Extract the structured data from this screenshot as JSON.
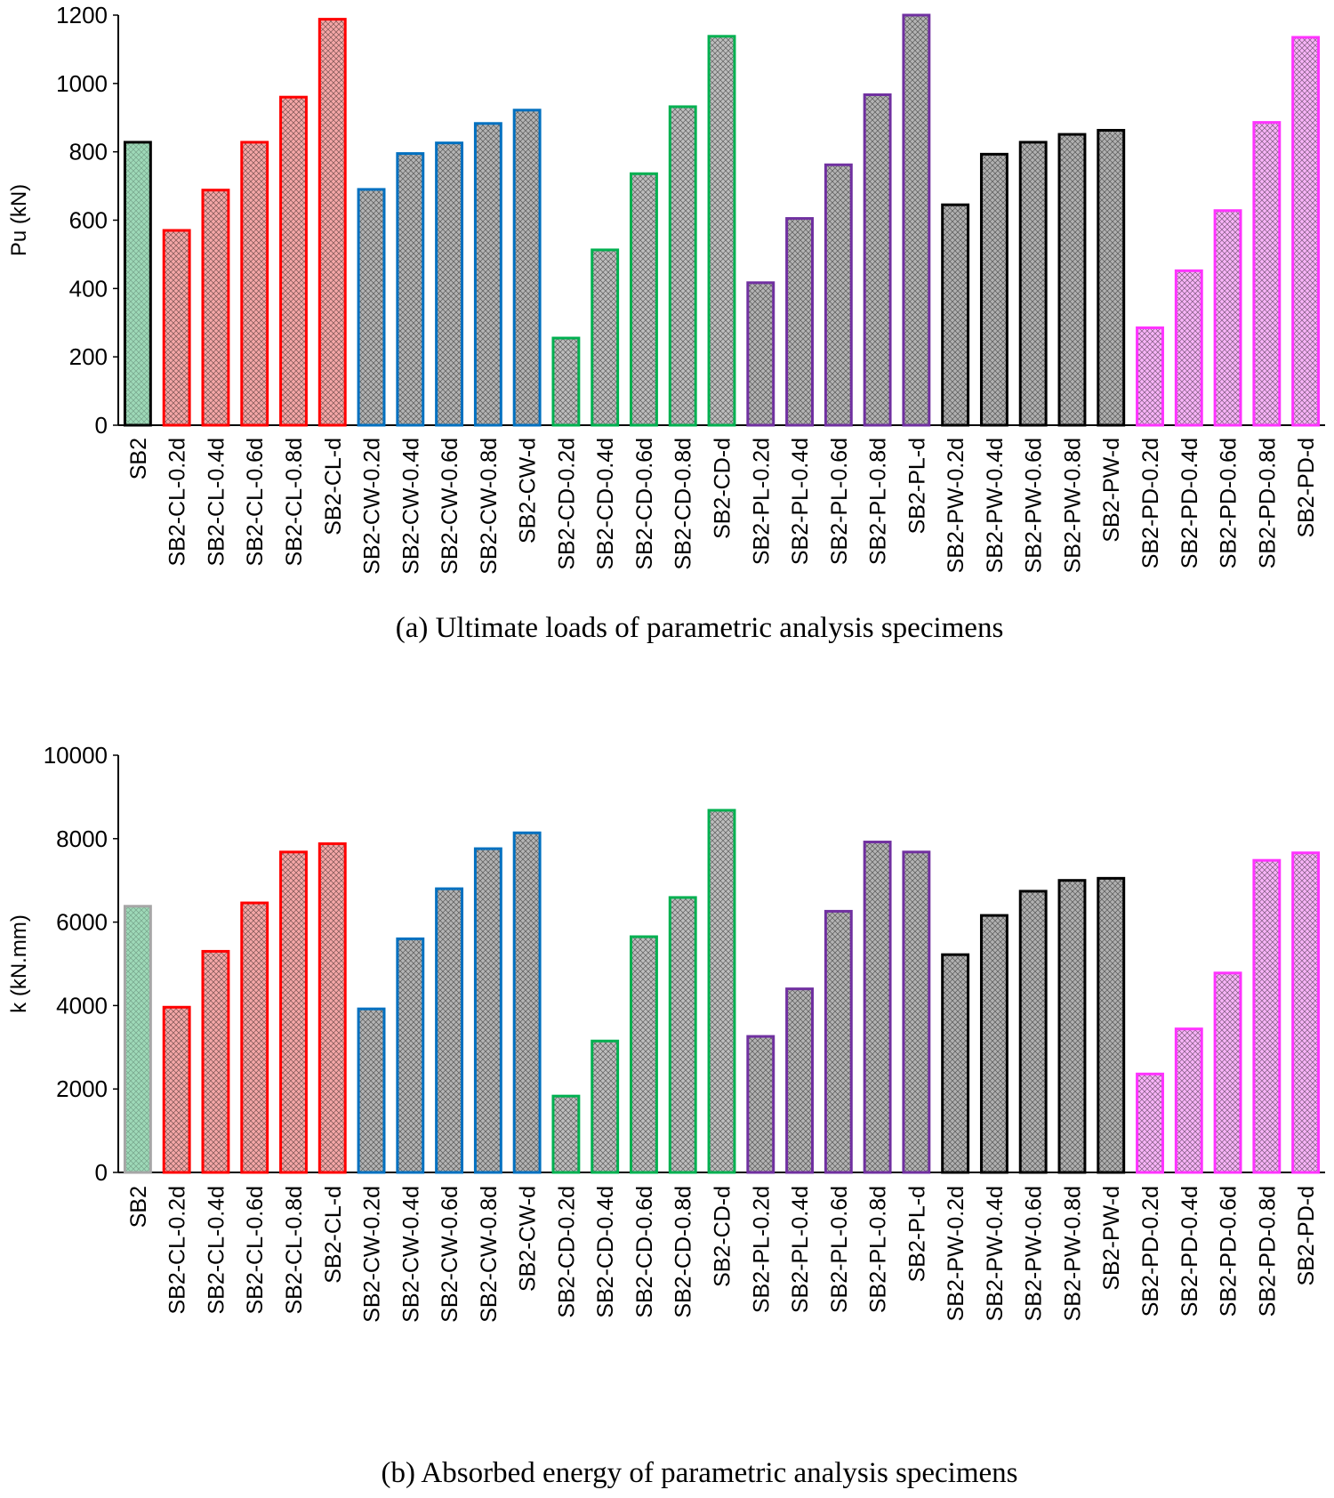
{
  "chart_data": [
    {
      "type": "bar",
      "title": "",
      "caption": "(a)  Ultimate loads of parametric analysis specimens",
      "xlabel": "",
      "ylabel": "Pu (kN)",
      "ylim": [
        0,
        1200
      ],
      "yticks": [
        0,
        200,
        400,
        600,
        800,
        1000,
        1200
      ],
      "ytick_labels": [
        "0",
        "200",
        "400",
        "600",
        "800",
        "1000",
        "1200"
      ],
      "grid": false,
      "categories": [
        "SB2",
        "SB2-CL-0.2d",
        "SB2-CL-0.4d",
        "SB2-CL-0.6d",
        "SB2-CL-0.8d",
        "SB2-CL-d",
        "SB2-CW-0.2d",
        "SB2-CW-0.4d",
        "SB2-CW-0.6d",
        "SB2-CW-0.8d",
        "SB2-CW-d",
        "SB2-CD-0.2d",
        "SB2-CD-0.4d",
        "SB2-CD-0.6d",
        "SB2-CD-0.8d",
        "SB2-CD-d",
        "SB2-PL-0.2d",
        "SB2-PL-0.4d",
        "SB2-PL-0.6d",
        "SB2-PL-0.8d",
        "SB2-PL-d",
        "SB2-PW-0.2d",
        "SB2-PW-0.4d",
        "SB2-PW-0.6d",
        "SB2-PW-0.8d",
        "SB2-PW-d",
        "SB2-PD-0.2d",
        "SB2-PD-0.4d",
        "SB2-PD-0.6d",
        "SB2-PD-0.8d",
        "SB2-PD-d"
      ],
      "values": [
        828,
        570,
        688,
        828,
        960,
        1188,
        690,
        795,
        826,
        883,
        922,
        255,
        513,
        736,
        932,
        1138,
        417,
        605,
        762,
        967,
        1200,
        645,
        793,
        828,
        851,
        863,
        285,
        452,
        628,
        886,
        1135
      ],
      "group_colors": {
        "SB2": "#000000",
        "CL": "#ff0000",
        "CW": "#0070c0",
        "CD": "#00b050",
        "PL": "#7030a0",
        "PW": "#000000",
        "PD": "#ff33ff"
      },
      "fill_colors": {
        "SB2": "#9ed9b8",
        "CL": "#f5a7a7",
        "CW": "#b3b3b3",
        "CD": "#bdbdbd",
        "PL": "#b3b3b3",
        "PW": "#b0b0b0",
        "PD": "#f8b4f8"
      }
    },
    {
      "type": "bar",
      "title": "",
      "caption": "(b)  Absorbed energy of parametric analysis specimens",
      "xlabel": "",
      "ylabel": "k (kN.mm)",
      "ylim": [
        0,
        10000
      ],
      "yticks": [
        0,
        2000,
        4000,
        6000,
        8000,
        10000
      ],
      "ytick_labels": [
        "0",
        "2000",
        "4000",
        "6000",
        "8000",
        "10000"
      ],
      "grid": false,
      "categories": [
        "SB2",
        "SB2-CL-0.2d",
        "SB2-CL-0.4d",
        "SB2-CL-0.6d",
        "SB2-CL-0.8d",
        "SB2-CL-d",
        "SB2-CW-0.2d",
        "SB2-CW-0.4d",
        "SB2-CW-0.6d",
        "SB2-CW-0.8d",
        "SB2-CW-d",
        "SB2-CD-0.2d",
        "SB2-CD-0.4d",
        "SB2-CD-0.6d",
        "SB2-CD-0.8d",
        "SB2-CD-d",
        "SB2-PL-0.2d",
        "SB2-PL-0.4d",
        "SB2-PL-0.6d",
        "SB2-PL-0.8d",
        "SB2-PL-d",
        "SB2-PW-0.2d",
        "SB2-PW-0.4d",
        "SB2-PW-0.6d",
        "SB2-PW-0.8d",
        "SB2-PW-d",
        "SB2-PD-0.2d",
        "SB2-PD-0.4d",
        "SB2-PD-0.6d",
        "SB2-PD-0.8d",
        "SB2-PD-d"
      ],
      "values": [
        6380,
        3960,
        5300,
        6460,
        7680,
        7880,
        3920,
        5600,
        6800,
        7760,
        8140,
        1830,
        3150,
        5650,
        6590,
        8680,
        3260,
        4400,
        6260,
        7920,
        7680,
        5220,
        6160,
        6740,
        7000,
        7050,
        2360,
        3440,
        4780,
        7480,
        7660
      ],
      "group_colors": {
        "SB2": "#a6a6a6",
        "CL": "#ff0000",
        "CW": "#0070c0",
        "CD": "#00b050",
        "PL": "#7030a0",
        "PW": "#000000",
        "PD": "#ff33ff"
      },
      "fill_colors": {
        "SB2": "#9ed9b8",
        "CL": "#f5a7a7",
        "CW": "#b3b3b3",
        "CD": "#bdbdbd",
        "PL": "#b3b3b3",
        "PW": "#b0b0b0",
        "PD": "#f8b4f8"
      }
    }
  ]
}
